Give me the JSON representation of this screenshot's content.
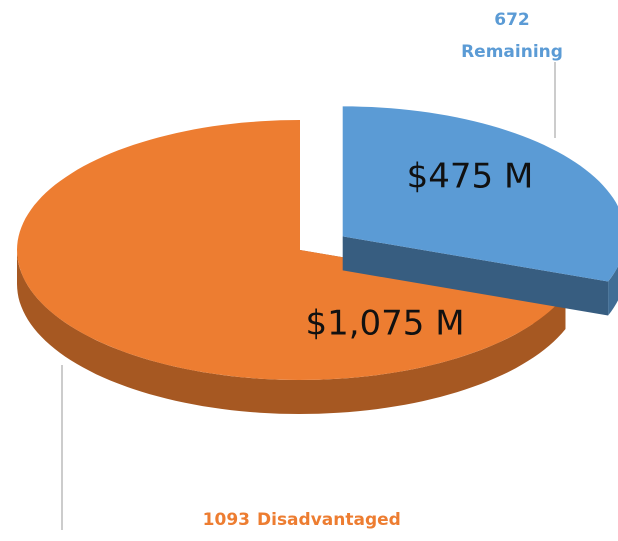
{
  "chart_data": {
    "type": "pie3d",
    "categories": [
      "Remaining",
      "Disadvantaged"
    ],
    "counts": [
      672,
      1093
    ],
    "values": [
      475,
      1075
    ],
    "value_labels": [
      "$475 M",
      "$1,075 M"
    ],
    "colors": [
      "#5b9bd5",
      "#ed7d31"
    ],
    "exploded": [
      true,
      false
    ]
  }
}
